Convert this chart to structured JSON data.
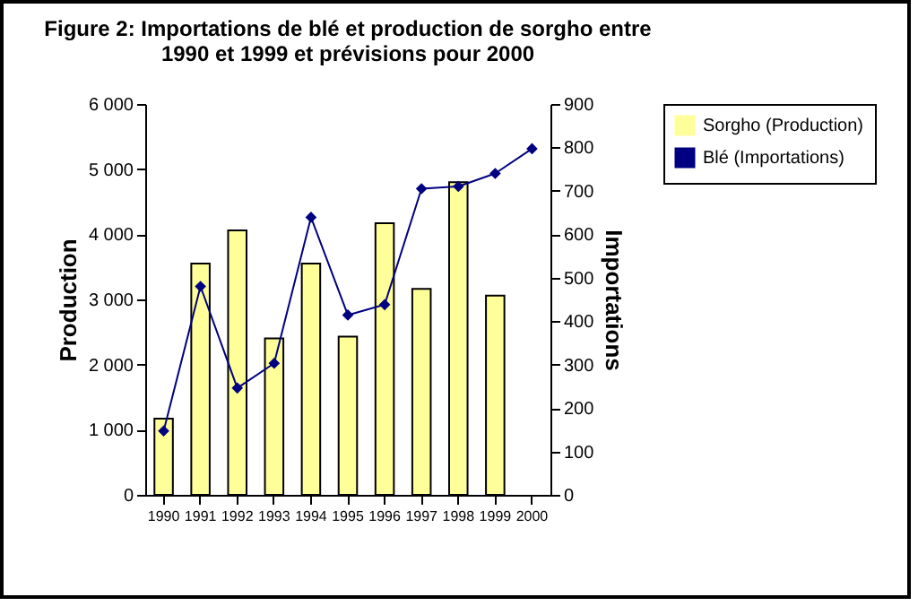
{
  "chart_data": {
    "type": "bar",
    "title": "Figure 2:  Importations de blé et production de sorgho entre 1990 et 1999 et prévisions pour 2000",
    "categories": [
      "1990",
      "1991",
      "1992",
      "1993",
      "1994",
      "1995",
      "1996",
      "1997",
      "1998",
      "1999",
      "2000"
    ],
    "series": [
      {
        "name": "Sorgho (Production)",
        "color": "#ffff99",
        "values": [
          1170,
          3550,
          4060,
          2400,
          3550,
          2430,
          4170,
          3160,
          4800,
          3060,
          null
        ]
      },
      {
        "name": "Blé (Importations)",
        "type": "line",
        "axis": "y2",
        "color": "#000080",
        "marker": "diamond",
        "values": [
          147,
          480,
          246,
          303,
          639,
          414,
          438,
          705,
          710,
          740,
          797
        ]
      }
    ],
    "ylabel": "Production",
    "y2label": "Importations",
    "ylim": [
      0,
      6000
    ],
    "yticks": [
      {
        "value": 0,
        "label": "0"
      },
      {
        "value": 1000,
        "label": "1 000"
      },
      {
        "value": 2000,
        "label": "2 000"
      },
      {
        "value": 3000,
        "label": "3 000"
      },
      {
        "value": 4000,
        "label": "4 000"
      },
      {
        "value": 5000,
        "label": "5 000"
      },
      {
        "value": 6000,
        "label": "6 000"
      }
    ],
    "y2lim": [
      0,
      900
    ],
    "y2ticks": [
      0,
      100,
      200,
      300,
      400,
      500,
      600,
      700,
      800,
      900
    ],
    "grid": false,
    "legend": "right"
  }
}
